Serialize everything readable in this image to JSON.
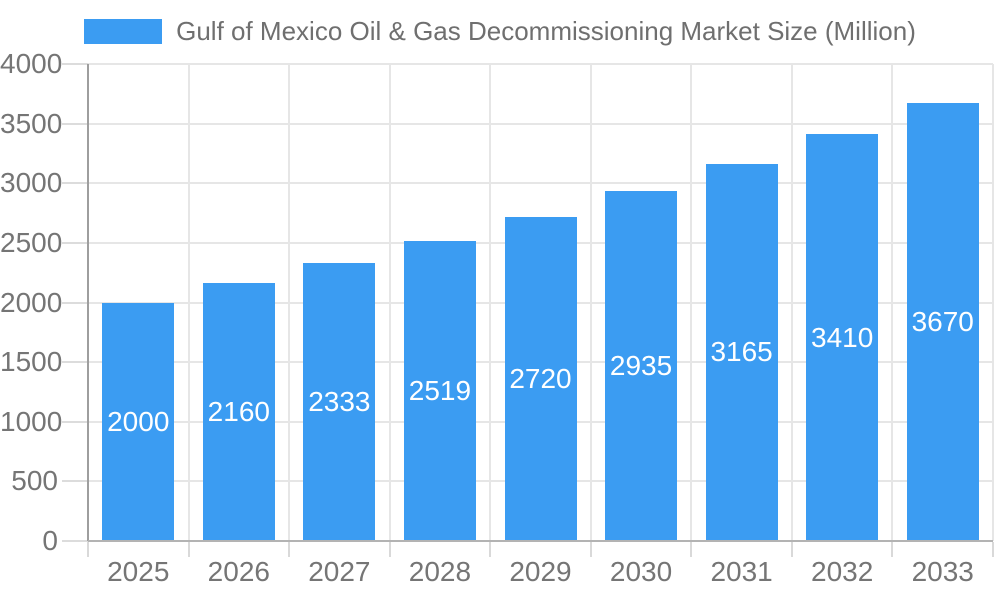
{
  "legend": {
    "swatch_color": "#3b9cf2"
  },
  "chart_data": {
    "type": "bar",
    "title": "Gulf of Mexico Oil & Gas Decommissioning Market Size (Million)",
    "categories": [
      "2025",
      "2026",
      "2027",
      "2028",
      "2029",
      "2030",
      "2031",
      "2032",
      "2033"
    ],
    "values": [
      2000,
      2160,
      2333,
      2519,
      2720,
      2935,
      3165,
      3410,
      3670
    ],
    "xlabel": "",
    "ylabel": "",
    "ylim": [
      0,
      4000
    ],
    "ytick_step": 500,
    "yticks": [
      0,
      500,
      1000,
      1500,
      2000,
      2500,
      3000,
      3500,
      4000
    ],
    "grid": true,
    "legend_position": "top",
    "bar_color": "#3b9cf2",
    "value_label_color": "#ffffff",
    "axis_label_color": "#757575",
    "gridline_color": "#e6e6e6"
  }
}
